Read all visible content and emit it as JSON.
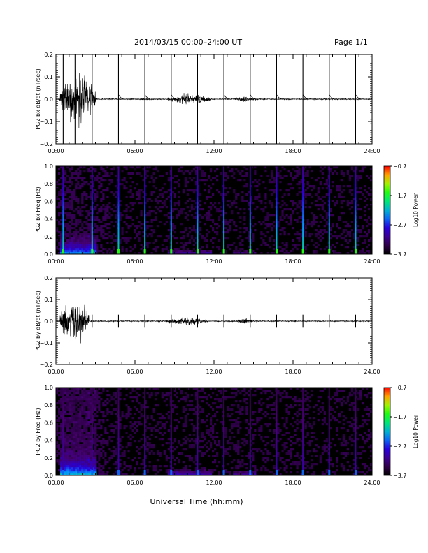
{
  "header": {
    "title": "2014/03/15  00:00–24:00 UT",
    "page": "Page 1/1"
  },
  "x_axis_title": "Universal Time (hh:mm)",
  "chart_data": [
    {
      "type": "line",
      "ylabel": "PG2 bx dB/dt (nT/sec)",
      "xlim": [
        0,
        24
      ],
      "xticks": [
        "00:00",
        "06:00",
        "12:00",
        "18:00",
        "24:00"
      ],
      "ylim": [
        -0.2,
        0.2
      ],
      "yticks": [
        "−0.2",
        "−0.1",
        "0.0",
        "0.1",
        "0.2"
      ],
      "x_unit": "hours UT",
      "spikes_hours": [
        0.55,
        1.45,
        2.75,
        4.75,
        6.75,
        8.75,
        10.75,
        12.75,
        14.75,
        16.75,
        18.75,
        20.75,
        22.75
      ],
      "activity": [
        {
          "start_hour": 0.3,
          "end_hour": 3.0,
          "peak_amplitude": 0.2
        },
        {
          "start_hour": 8.5,
          "end_hour": 11.8,
          "peak_amplitude": 0.04
        },
        {
          "start_hour": 13.5,
          "end_hour": 15.2,
          "peak_amplitude": 0.02
        }
      ]
    },
    {
      "type": "heatmap",
      "ylabel": "PG2 bx Freq (Hz)",
      "xlim": [
        0,
        24
      ],
      "xticks": [
        "00:00",
        "06:00",
        "12:00",
        "18:00",
        "24:00"
      ],
      "ylim": [
        0,
        1.0
      ],
      "yticks": [
        "0.0",
        "0.2",
        "0.4",
        "0.6",
        "0.8",
        "1.0"
      ],
      "colorbar": {
        "label": "Log10 Power",
        "ticks": [
          "−0.7",
          "−1.7",
          "−2.7",
          "−3.7"
        ],
        "range": [
          -3.7,
          -0.7
        ]
      },
      "spike_lines_hours": [
        0.55,
        2.75,
        4.75,
        6.75,
        8.75,
        10.75,
        12.75,
        14.75,
        16.75,
        18.75,
        20.75,
        22.75
      ],
      "low_freq_activity": [
        {
          "start_hour": 0.3,
          "end_hour": 3.0,
          "level": -2.4
        },
        {
          "start_hour": 8.5,
          "end_hour": 11.8,
          "level": -3.1
        },
        {
          "start_hour": 13.5,
          "end_hour": 15.2,
          "level": -3.2
        }
      ]
    },
    {
      "type": "line",
      "ylabel": "PG2 by dB/dt (nT/sec)",
      "xlim": [
        0,
        24
      ],
      "xticks": [
        "00:00",
        "06:00",
        "12:00",
        "18:00",
        "24:00"
      ],
      "ylim": [
        -0.2,
        0.2
      ],
      "yticks": [
        "−0.2",
        "−0.1",
        "0.0",
        "0.1",
        "0.2"
      ],
      "x_unit": "hours UT",
      "spikes_hours": [
        0.55,
        2.75,
        4.75,
        6.75,
        8.75,
        10.75,
        12.75,
        14.75,
        16.75,
        18.75,
        20.75,
        22.75
      ],
      "activity": [
        {
          "start_hour": 0.3,
          "end_hour": 2.5,
          "peak_amplitude": 0.19
        },
        {
          "start_hour": 8.5,
          "end_hour": 11.5,
          "peak_amplitude": 0.035
        },
        {
          "start_hour": 13.8,
          "end_hour": 15.0,
          "peak_amplitude": 0.025
        }
      ]
    },
    {
      "type": "heatmap",
      "ylabel": "PG2 by Freq (Hz)",
      "xlim": [
        0,
        24
      ],
      "xticks": [
        "00:00",
        "06:00",
        "12:00",
        "18:00",
        "24:00"
      ],
      "ylim": [
        0,
        1.0
      ],
      "yticks": [
        "0.0",
        "0.2",
        "0.4",
        "0.6",
        "0.8",
        "1.0"
      ],
      "colorbar": {
        "label": "Log10 Power",
        "ticks": [
          "−0.7",
          "−1.7",
          "−2.7",
          "−3.7"
        ],
        "range": [
          -3.7,
          -0.7
        ]
      },
      "spike_lines_hours": [
        0.55,
        2.75,
        4.75,
        6.75,
        8.75,
        10.75,
        12.75,
        14.75,
        16.75,
        18.75,
        20.75,
        22.75
      ],
      "low_freq_activity": [
        {
          "start_hour": 0.3,
          "end_hour": 3.0,
          "level": -2.2
        },
        {
          "start_hour": 8.5,
          "end_hour": 11.8,
          "level": -3.0
        },
        {
          "start_hour": 13.5,
          "end_hour": 15.2,
          "level": -3.1
        }
      ]
    }
  ]
}
